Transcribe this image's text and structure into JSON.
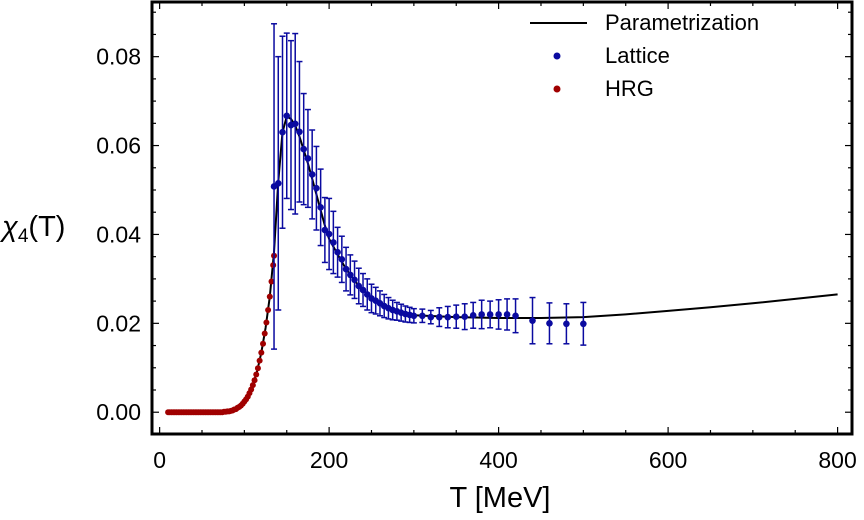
{
  "chart_data": {
    "type": "scatter",
    "title": "",
    "xlabel": "T [MeV]",
    "ylabel": {
      "main": "χ",
      "subscript": "4",
      "suffix": "(T)"
    },
    "xlim": [
      -9,
      817
    ],
    "ylim": [
      -0.0049,
      0.0923
    ],
    "xticks": [
      0,
      200,
      400,
      600,
      800
    ],
    "xtick_labels": [
      "0",
      "200",
      "400",
      "600",
      "800"
    ],
    "yticks": [
      0.0,
      0.02,
      0.04,
      0.06,
      0.08
    ],
    "ytick_labels": [
      "0.00",
      "0.02",
      "0.04",
      "0.06",
      "0.08"
    ],
    "x_minor_step": 50,
    "y_minor_step": 0.005,
    "grid": false,
    "legend_position": "top-right",
    "colors": {
      "parametrization": "#000000",
      "lattice": "#0a0aa0",
      "hrg": "#a00000"
    },
    "series": [
      {
        "name": "Parametrization",
        "kind": "line",
        "x": [
          10,
          70,
          80,
          90,
          100,
          105,
          110,
          115,
          120,
          125,
          130,
          135,
          140,
          145,
          150,
          155,
          160,
          165,
          170,
          175,
          180,
          185,
          190,
          195,
          200,
          210,
          220,
          230,
          240,
          250,
          260,
          270,
          280,
          290,
          300,
          350,
          400,
          450,
          500,
          550,
          600,
          650,
          700,
          750,
          800
        ],
        "y": [
          0,
          0,
          0.0002,
          0.0007,
          0.0024,
          0.0039,
          0.0061,
          0.0092,
          0.0134,
          0.019,
          0.026,
          0.036,
          0.052,
          0.063,
          0.0665,
          0.066,
          0.0645,
          0.062,
          0.059,
          0.056,
          0.0525,
          0.049,
          0.0455,
          0.042,
          0.039,
          0.0355,
          0.0322,
          0.0296,
          0.0275,
          0.0258,
          0.0245,
          0.0235,
          0.0228,
          0.0222,
          0.0218,
          0.0214,
          0.0212,
          0.0212,
          0.0214,
          0.022,
          0.0228,
          0.0236,
          0.0245,
          0.0255,
          0.0265
        ]
      },
      {
        "name": "Lattice",
        "kind": "errorbar",
        "x": [
          135,
          140,
          145,
          150,
          155,
          160,
          165,
          170,
          175,
          180,
          185,
          190,
          195,
          200,
          205,
          210,
          215,
          220,
          225,
          230,
          235,
          240,
          245,
          250,
          255,
          260,
          265,
          270,
          275,
          280,
          285,
          290,
          295,
          300,
          310,
          320,
          330,
          340,
          350,
          360,
          370,
          380,
          390,
          400,
          410,
          420,
          440,
          460,
          480,
          500
        ],
        "y": [
          0.0508,
          0.0515,
          0.063,
          0.0667,
          0.0646,
          0.0649,
          0.0631,
          0.0592,
          0.0571,
          0.0535,
          0.0504,
          0.0461,
          0.041,
          0.0401,
          0.0382,
          0.036,
          0.0344,
          0.0322,
          0.0309,
          0.0298,
          0.0284,
          0.0275,
          0.0265,
          0.0256,
          0.0251,
          0.0245,
          0.0239,
          0.0234,
          0.023,
          0.0227,
          0.0224,
          0.0221,
          0.0219,
          0.0217,
          0.0217,
          0.0214,
          0.0214,
          0.0214,
          0.0215,
          0.0215,
          0.0218,
          0.022,
          0.022,
          0.022,
          0.022,
          0.0217,
          0.0206,
          0.02,
          0.0199,
          0.0199
        ],
        "err": [
          0.0366,
          0.0285,
          0.0216,
          0.0186,
          0.019,
          0.0203,
          0.0158,
          0.0125,
          0.011,
          0.01,
          0.0094,
          0.0086,
          0.0073,
          0.008,
          0.007,
          0.0056,
          0.0052,
          0.0049,
          0.0045,
          0.0042,
          0.004,
          0.0037,
          0.0035,
          0.0032,
          0.003,
          0.0028,
          0.0026,
          0.0024,
          0.0022,
          0.002,
          0.0019,
          0.0018,
          0.0017,
          0.0016,
          0.0015,
          0.0015,
          0.0021,
          0.0024,
          0.0026,
          0.0029,
          0.0029,
          0.0032,
          0.003,
          0.0033,
          0.0035,
          0.0038,
          0.0052,
          0.0046,
          0.0045,
          0.0048
        ]
      },
      {
        "name": "HRG",
        "kind": "points",
        "x": [
          10,
          12,
          14,
          16,
          18,
          20,
          22,
          24,
          26,
          28,
          30,
          32,
          34,
          36,
          38,
          40,
          42,
          44,
          46,
          48,
          50,
          52,
          54,
          56,
          58,
          60,
          62,
          64,
          66,
          68,
          70,
          72,
          74,
          76,
          78,
          80,
          82,
          84,
          86,
          88,
          90,
          92,
          94,
          96,
          98,
          100,
          102,
          104,
          106,
          108,
          110,
          112,
          114,
          116,
          118,
          120,
          122,
          124,
          126,
          128,
          130,
          132,
          134,
          135
        ],
        "y": [
          0,
          0,
          0,
          0,
          0,
          0,
          0,
          0,
          0,
          0,
          0,
          0,
          0,
          0,
          0,
          0,
          0,
          0,
          0,
          0,
          0,
          0,
          0,
          0,
          0,
          0,
          0,
          0,
          0,
          0,
          0,
          0,
          0,
          0.0001,
          0.0001,
          0.0002,
          0.0002,
          0.0003,
          0.0004,
          0.0006,
          0.0007,
          0.001,
          0.0012,
          0.0015,
          0.0019,
          0.0024,
          0.0029,
          0.0035,
          0.0043,
          0.0051,
          0.0061,
          0.0072,
          0.0085,
          0.0099,
          0.0116,
          0.0134,
          0.0154,
          0.0177,
          0.0202,
          0.023,
          0.026,
          0.0294,
          0.0331,
          0.0352
        ]
      }
    ]
  }
}
